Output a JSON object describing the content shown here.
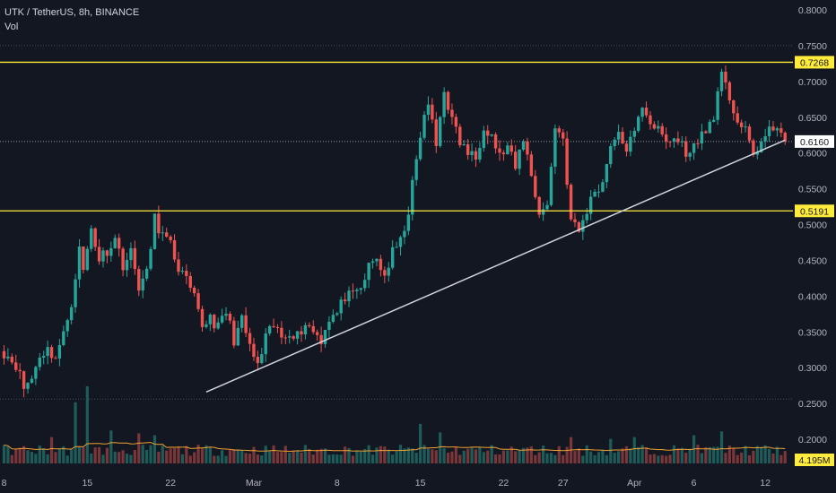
{
  "header": {
    "title": "UTK / TetherUS, 8h, BINANCE",
    "subtitle": "Vol"
  },
  "colors": {
    "background": "#131722",
    "up": "#26a69a",
    "down": "#ef5350",
    "up_volume": "#1e5c5a",
    "down_volume": "#7a3638",
    "level_line": "#ffeb3b",
    "trend_line": "#d1d4dc",
    "volume_ma": "#f0a030",
    "axis_text": "#b2b5be",
    "grid_dotted": "#4a4e5a"
  },
  "chart_data": {
    "type": "candlestick",
    "y_axis": {
      "ticks": [
        "0.8000",
        "0.7500",
        "0.7000",
        "0.6500",
        "0.6000",
        "0.5500",
        "0.5000",
        "0.4500",
        "0.4000",
        "0.3500",
        "0.3000",
        "0.2500",
        "0.2000"
      ],
      "range": [
        0.18,
        0.815
      ]
    },
    "x_axis": {
      "ticks": [
        {
          "label": "8",
          "candle": 0
        },
        {
          "label": "15",
          "candle": 21
        },
        {
          "label": "22",
          "candle": 42
        },
        {
          "label": "Mar",
          "candle": 63
        },
        {
          "label": "8",
          "candle": 84
        },
        {
          "label": "15",
          "candle": 105
        },
        {
          "label": "22",
          "candle": 126
        },
        {
          "label": "27",
          "candle": 141
        },
        {
          "label": "Apr",
          "candle": 159
        },
        {
          "label": "6",
          "candle": 174
        },
        {
          "label": "12",
          "candle": 192
        }
      ]
    },
    "levels": [
      {
        "value": 0.7268,
        "label": "0.7268"
      },
      {
        "value": 0.5191,
        "label": "0.5191"
      }
    ],
    "current_price": {
      "value": 0.616,
      "label": "0.6160"
    },
    "volume_label": "4.195M",
    "trendline": {
      "start": {
        "candle": 51,
        "price": 0.266
      },
      "end": {
        "candle": 197,
        "price": 0.618
      }
    },
    "dotted_price_lines": [
      0.75,
      0.256
    ],
    "anchors": [
      [
        0,
        0.322
      ],
      [
        3,
        0.305
      ],
      [
        5,
        0.272
      ],
      [
        7,
        0.285
      ],
      [
        9,
        0.318
      ],
      [
        11,
        0.325
      ],
      [
        13,
        0.315
      ],
      [
        15,
        0.345
      ],
      [
        17,
        0.392
      ],
      [
        19,
        0.465
      ],
      [
        20,
        0.435
      ],
      [
        22,
        0.495
      ],
      [
        24,
        0.452
      ],
      [
        26,
        0.465
      ],
      [
        28,
        0.48
      ],
      [
        30,
        0.445
      ],
      [
        32,
        0.46
      ],
      [
        34,
        0.415
      ],
      [
        36,
        0.43
      ],
      [
        38,
        0.508
      ],
      [
        40,
        0.485
      ],
      [
        42,
        0.47
      ],
      [
        44,
        0.44
      ],
      [
        46,
        0.42
      ],
      [
        48,
        0.395
      ],
      [
        50,
        0.358
      ],
      [
        52,
        0.372
      ],
      [
        54,
        0.355
      ],
      [
        56,
        0.378
      ],
      [
        58,
        0.34
      ],
      [
        60,
        0.365
      ],
      [
        62,
        0.33
      ],
      [
        64,
        0.3
      ],
      [
        66,
        0.34
      ],
      [
        68,
        0.358
      ],
      [
        70,
        0.342
      ],
      [
        72,
        0.352
      ],
      [
        74,
        0.345
      ],
      [
        76,
        0.362
      ],
      [
        78,
        0.352
      ],
      [
        80,
        0.34
      ],
      [
        82,
        0.37
      ],
      [
        84,
        0.375
      ],
      [
        86,
        0.4
      ],
      [
        88,
        0.398
      ],
      [
        90,
        0.41
      ],
      [
        92,
        0.44
      ],
      [
        94,
        0.452
      ],
      [
        96,
        0.428
      ],
      [
        98,
        0.46
      ],
      [
        100,
        0.475
      ],
      [
        102,
        0.52
      ],
      [
        104,
        0.588
      ],
      [
        105,
        0.625
      ],
      [
        107,
        0.67
      ],
      [
        109,
        0.61
      ],
      [
        111,
        0.69
      ],
      [
        113,
        0.645
      ],
      [
        115,
        0.615
      ],
      [
        117,
        0.6
      ],
      [
        119,
        0.592
      ],
      [
        121,
        0.64
      ],
      [
        123,
        0.625
      ],
      [
        125,
        0.595
      ],
      [
        127,
        0.608
      ],
      [
        129,
        0.578
      ],
      [
        131,
        0.622
      ],
      [
        133,
        0.568
      ],
      [
        135,
        0.518
      ],
      [
        137,
        0.525
      ],
      [
        139,
        0.638
      ],
      [
        141,
        0.62
      ],
      [
        143,
        0.505
      ],
      [
        145,
        0.49
      ],
      [
        147,
        0.52
      ],
      [
        149,
        0.548
      ],
      [
        151,
        0.558
      ],
      [
        153,
        0.615
      ],
      [
        155,
        0.622
      ],
      [
        157,
        0.608
      ],
      [
        159,
        0.625
      ],
      [
        161,
        0.668
      ],
      [
        163,
        0.645
      ],
      [
        165,
        0.63
      ],
      [
        167,
        0.615
      ],
      [
        169,
        0.62
      ],
      [
        171,
        0.612
      ],
      [
        173,
        0.595
      ],
      [
        175,
        0.622
      ],
      [
        177,
        0.628
      ],
      [
        179,
        0.655
      ],
      [
        181,
        0.705
      ],
      [
        183,
        0.678
      ],
      [
        185,
        0.645
      ],
      [
        187,
        0.628
      ],
      [
        189,
        0.598
      ],
      [
        191,
        0.615
      ],
      [
        193,
        0.628
      ],
      [
        195,
        0.642
      ],
      [
        197,
        0.616
      ]
    ],
    "volume_levels": [
      {
        "candle": 12,
        "level": 0.28
      },
      {
        "candle": 18,
        "level": 0.65
      },
      {
        "candle": 21,
        "level": 0.82
      },
      {
        "candle": 27,
        "level": 0.35
      },
      {
        "candle": 34,
        "level": 0.32
      },
      {
        "candle": 38,
        "level": 0.3
      },
      {
        "candle": 105,
        "level": 0.42
      },
      {
        "candle": 110,
        "level": 0.33
      },
      {
        "candle": 143,
        "level": 0.28
      },
      {
        "candle": 153,
        "level": 0.26
      },
      {
        "candle": 159,
        "level": 0.28
      },
      {
        "candle": 174,
        "level": 0.3
      },
      {
        "candle": 181,
        "level": 0.34
      }
    ]
  }
}
